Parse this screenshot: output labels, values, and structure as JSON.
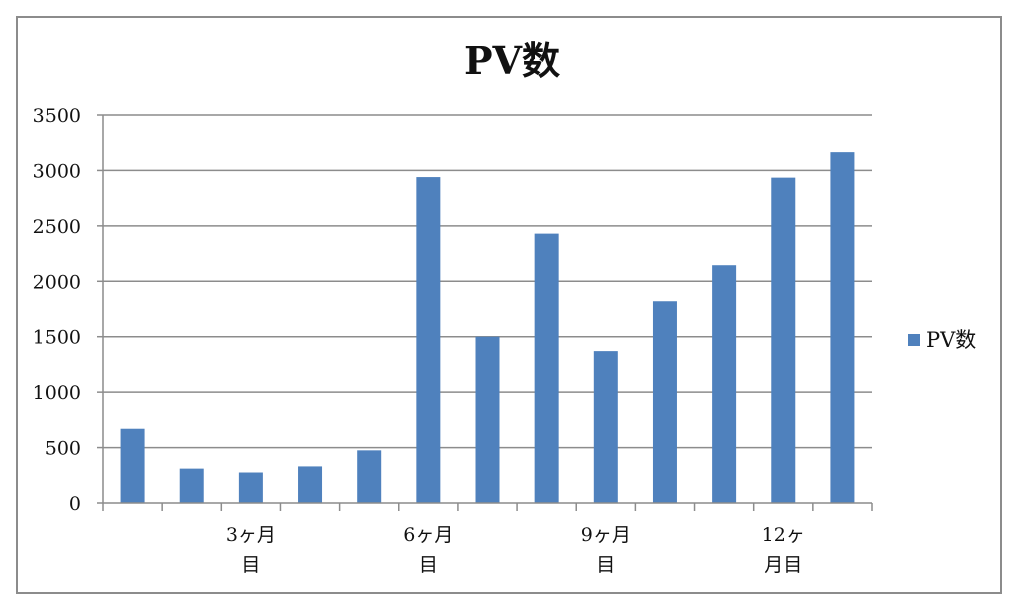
{
  "chart_data": {
    "type": "bar",
    "title": "PV数",
    "categories": [
      "",
      "",
      "3ヶ月\n目",
      "",
      "",
      "6ヶ月\n目",
      "",
      "",
      "9ヶ月\n目",
      "",
      "",
      "12ヶ\n月目",
      ""
    ],
    "series": [
      {
        "name": "PV数",
        "color": "#4f81bd",
        "values": [
          670,
          310,
          275,
          330,
          475,
          2940,
          1500,
          2430,
          1370,
          1820,
          2145,
          2935,
          3165
        ]
      }
    ],
    "ylim": [
      0,
      3500
    ],
    "yticks": [
      0,
      500,
      1000,
      1500,
      2000,
      2500,
      3000,
      3500
    ],
    "grid": true,
    "legend": "right"
  }
}
